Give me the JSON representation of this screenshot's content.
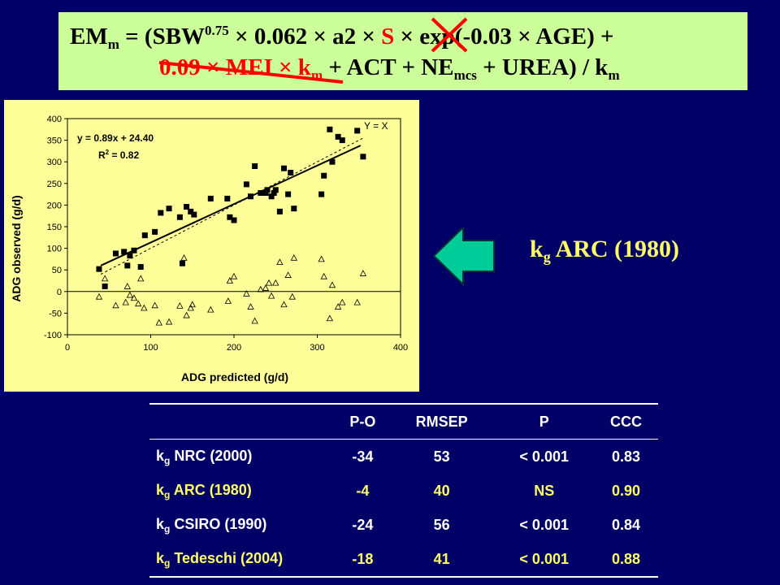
{
  "equation": {
    "line1": [
      {
        "t": "EM",
        "style": "n"
      },
      {
        "t": "m",
        "style": "sub"
      },
      {
        "t": " = (SBW",
        "style": "n"
      },
      {
        "t": "0.75",
        "style": "sup"
      },
      {
        "t": " × 0.062 × a2 × ",
        "style": "n"
      },
      {
        "t": "S",
        "style": "red"
      },
      {
        "t": " × exp(-0.03 × AGE) +",
        "style": "n"
      }
    ],
    "line2": [
      {
        "t": "0.09 × MEI × k",
        "style": "red"
      },
      {
        "t": "m",
        "style": "redsub"
      },
      {
        "t": " + ACT + NE",
        "style": "n"
      },
      {
        "t": "mcs",
        "style": "sub"
      },
      {
        "t": " + UREA) / k",
        "style": "n"
      },
      {
        "t": "m",
        "style": "sub"
      }
    ]
  },
  "label": {
    "k": "k",
    "sub": "g",
    "rest": " ARC (1980)"
  },
  "colors": {
    "background": "#000066",
    "equation_box": "#ccff99",
    "chart_panel": "#ffff99",
    "highlight": "#ffff66",
    "arrow": "#00cc99",
    "strike": "#ff0000"
  },
  "chart_data": {
    "type": "scatter",
    "xlabel": "ADG predicted (g/d)",
    "ylabel": "ADG observed (g/d)",
    "xlim": [
      0,
      400
    ],
    "ylim": [
      -100,
      400
    ],
    "xticks": [
      0,
      100,
      200,
      300,
      400
    ],
    "yticks": [
      -100,
      -50,
      0,
      50,
      100,
      150,
      200,
      250,
      300,
      350,
      400
    ],
    "grid": false,
    "annotations": {
      "equation": "y = 0.89x + 24.40",
      "r2_label": "R",
      "r2_sup": "2",
      "r2_value": " = 0.82",
      "identity": "Y = X"
    },
    "regression": {
      "slope": 0.89,
      "intercept": 24.4,
      "x": [
        40,
        352
      ]
    },
    "identity_line": {
      "x": [
        40,
        355
      ]
    },
    "series": [
      {
        "marker": "square",
        "points": [
          [
            38,
            52
          ],
          [
            45,
            12
          ],
          [
            58,
            88
          ],
          [
            68,
            92
          ],
          [
            72,
            60
          ],
          [
            75,
            83
          ],
          [
            80,
            95
          ],
          [
            88,
            57
          ],
          [
            93,
            130
          ],
          [
            105,
            138
          ],
          [
            112,
            182
          ],
          [
            122,
            192
          ],
          [
            135,
            172
          ],
          [
            138,
            65
          ],
          [
            143,
            196
          ],
          [
            148,
            185
          ],
          [
            152,
            178
          ],
          [
            172,
            215
          ],
          [
            192,
            215
          ],
          [
            195,
            172
          ],
          [
            200,
            165
          ],
          [
            215,
            248
          ],
          [
            220,
            220
          ],
          [
            225,
            290
          ],
          [
            232,
            228
          ],
          [
            238,
            228
          ],
          [
            240,
            235
          ],
          [
            245,
            220
          ],
          [
            248,
            228
          ],
          [
            250,
            235
          ],
          [
            255,
            185
          ],
          [
            260,
            285
          ],
          [
            265,
            225
          ],
          [
            268,
            275
          ],
          [
            272,
            192
          ],
          [
            305,
            225
          ],
          [
            308,
            268
          ],
          [
            315,
            375
          ],
          [
            318,
            300
          ],
          [
            325,
            358
          ],
          [
            330,
            350
          ],
          [
            348,
            372
          ],
          [
            355,
            312
          ]
        ]
      },
      {
        "marker": "triangle",
        "points": [
          [
            38,
            -12
          ],
          [
            45,
            30
          ],
          [
            58,
            -32
          ],
          [
            70,
            -25
          ],
          [
            72,
            12
          ],
          [
            75,
            -8
          ],
          [
            80,
            -15
          ],
          [
            85,
            -28
          ],
          [
            88,
            30
          ],
          [
            92,
            -38
          ],
          [
            105,
            -32
          ],
          [
            110,
            -72
          ],
          [
            122,
            -70
          ],
          [
            135,
            -33
          ],
          [
            140,
            78
          ],
          [
            143,
            -55
          ],
          [
            148,
            -38
          ],
          [
            150,
            -30
          ],
          [
            172,
            -42
          ],
          [
            193,
            -22
          ],
          [
            195,
            25
          ],
          [
            200,
            35
          ],
          [
            215,
            -5
          ],
          [
            220,
            -35
          ],
          [
            225,
            -68
          ],
          [
            232,
            5
          ],
          [
            238,
            8
          ],
          [
            242,
            20
          ],
          [
            245,
            -10
          ],
          [
            250,
            20
          ],
          [
            255,
            68
          ],
          [
            260,
            -30
          ],
          [
            265,
            38
          ],
          [
            270,
            -12
          ],
          [
            272,
            78
          ],
          [
            305,
            75
          ],
          [
            308,
            35
          ],
          [
            315,
            -62
          ],
          [
            318,
            15
          ],
          [
            325,
            -35
          ],
          [
            330,
            -25
          ],
          [
            348,
            -25
          ],
          [
            355,
            42
          ]
        ]
      }
    ]
  },
  "table": {
    "headers": [
      "",
      "P-O",
      "RMSEP",
      "P",
      "CCC"
    ],
    "rows": [
      {
        "label": {
          "k": "k",
          "sub": "g",
          "rest": " NRC (2000)"
        },
        "values": [
          "-34",
          "53",
          "< 0.001",
          "0.83"
        ],
        "highlight": false
      },
      {
        "label": {
          "k": "k",
          "sub": "g",
          "rest": " ARC (1980)"
        },
        "values": [
          "-4",
          "40",
          "NS",
          "0.90"
        ],
        "highlight": true
      },
      {
        "label": {
          "k": "k",
          "sub": "g",
          "rest": " CSIRO (1990)"
        },
        "values": [
          "-24",
          "56",
          "< 0.001",
          "0.84"
        ],
        "highlight": false
      },
      {
        "label": {
          "k": "k",
          "sub": "g",
          "rest": " Tedeschi (2004)"
        },
        "values": [
          "-18",
          "41",
          "< 0.001",
          "0.88"
        ],
        "highlight": true
      }
    ]
  }
}
